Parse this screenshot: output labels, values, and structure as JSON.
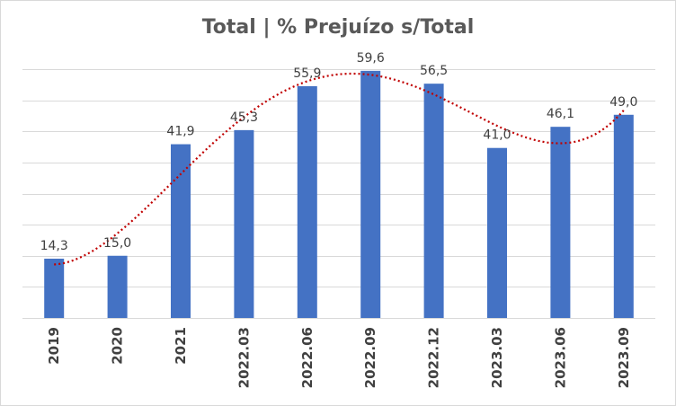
{
  "chart_data": {
    "type": "bar",
    "title": "Total | % Prejuízo s/Total",
    "categories": [
      "2019",
      "2020",
      "2021",
      "2022.03",
      "2022.06",
      "2022.09",
      "2022.12",
      "2023.03",
      "2023.06",
      "2023.09"
    ],
    "values": [
      14.3,
      15.0,
      41.9,
      45.3,
      55.9,
      59.6,
      56.5,
      41.0,
      46.1,
      49.0
    ],
    "data_labels": [
      "14,3",
      "15,0",
      "41,9",
      "45,3",
      "55,9",
      "59,6",
      "56,5",
      "41,0",
      "46,1",
      "49,0"
    ],
    "ylim": [
      0,
      60
    ],
    "grid": true,
    "legend": "none",
    "trendline": "polynomial",
    "colors": {
      "bars": "#4472c4",
      "trendline": "#c00000",
      "grid": "#d9d9d9"
    }
  }
}
